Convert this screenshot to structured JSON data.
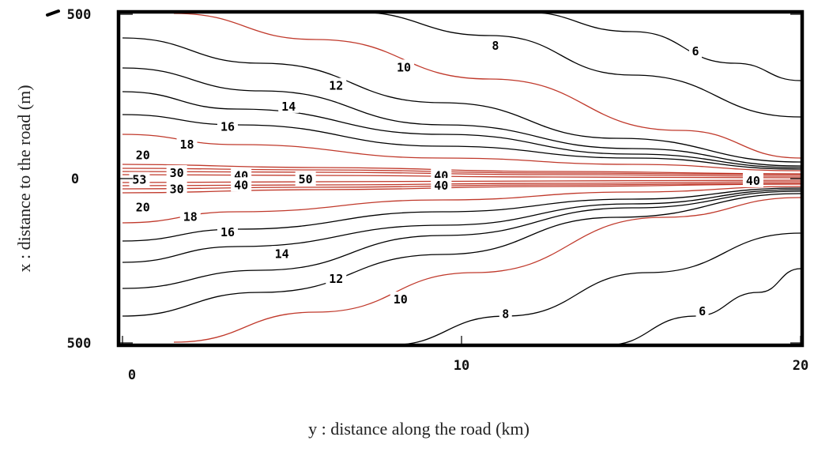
{
  "chart_data": {
    "type": "line",
    "subtype": "contour",
    "title": "",
    "xlabel": "y : distance along the road (km)",
    "ylabel": "x : distance to the road (m)",
    "xlim": [
      0,
      20
    ],
    "ylim": [
      -500,
      500
    ],
    "x_ticks": [
      {
        "value": 0,
        "label": "0"
      },
      {
        "value": 10,
        "label": "10"
      },
      {
        "value": 20,
        "label": "20"
      }
    ],
    "y_ticks": [
      {
        "value": 500,
        "label": "500"
      },
      {
        "value": 0,
        "label": "0"
      },
      {
        "value": -500,
        "label": "500"
      }
    ],
    "grid": false,
    "colors": {
      "major_contour": "#c0392b",
      "minor_contour": "#000000",
      "frame": "#000000"
    },
    "major_levels": [
      10,
      20,
      30,
      40
    ],
    "levels": [
      6,
      8,
      10,
      12,
      14,
      16,
      18,
      20,
      30,
      40,
      50
    ],
    "contour_labels": [
      {
        "text": "6",
        "x": 16.9,
        "y": 387,
        "major": false
      },
      {
        "text": "8",
        "x": 11.0,
        "y": 404,
        "major": false
      },
      {
        "text": "10",
        "x": 8.3,
        "y": 338,
        "major": true
      },
      {
        "text": "12",
        "x": 6.3,
        "y": 282,
        "major": false
      },
      {
        "text": "14",
        "x": 4.9,
        "y": 219,
        "major": false
      },
      {
        "text": "16",
        "x": 3.1,
        "y": 158,
        "major": false
      },
      {
        "text": "18",
        "x": 1.9,
        "y": 103,
        "major": false
      },
      {
        "text": "20",
        "x": 0.6,
        "y": 71,
        "major": true
      },
      {
        "text": "30",
        "x": 1.6,
        "y": 17,
        "major": true
      },
      {
        "text": "40",
        "x": 3.5,
        "y": 8,
        "major": true
      },
      {
        "text": "40",
        "x": 9.4,
        "y": 9,
        "major": true
      },
      {
        "text": "40",
        "x": 18.6,
        "y": -7,
        "major": true
      },
      {
        "text": "53",
        "x": 0.5,
        "y": -4,
        "major": true
      },
      {
        "text": "50",
        "x": 5.4,
        "y": -3,
        "major": true
      },
      {
        "text": "40",
        "x": 3.5,
        "y": -20,
        "major": true
      },
      {
        "text": "40",
        "x": 9.4,
        "y": -22,
        "major": true
      },
      {
        "text": "30",
        "x": 1.6,
        "y": -32,
        "major": true
      },
      {
        "text": "20",
        "x": 0.6,
        "y": -88,
        "major": true
      },
      {
        "text": "18",
        "x": 2.0,
        "y": -117,
        "major": false
      },
      {
        "text": "16",
        "x": 3.1,
        "y": -164,
        "major": false
      },
      {
        "text": "14",
        "x": 4.7,
        "y": -229,
        "major": false
      },
      {
        "text": "12",
        "x": 6.3,
        "y": -305,
        "major": false
      },
      {
        "text": "10",
        "x": 8.2,
        "y": -368,
        "major": true
      },
      {
        "text": "8",
        "x": 11.3,
        "y": -412,
        "major": false
      },
      {
        "text": "6",
        "x": 17.1,
        "y": -404,
        "major": false
      }
    ]
  }
}
